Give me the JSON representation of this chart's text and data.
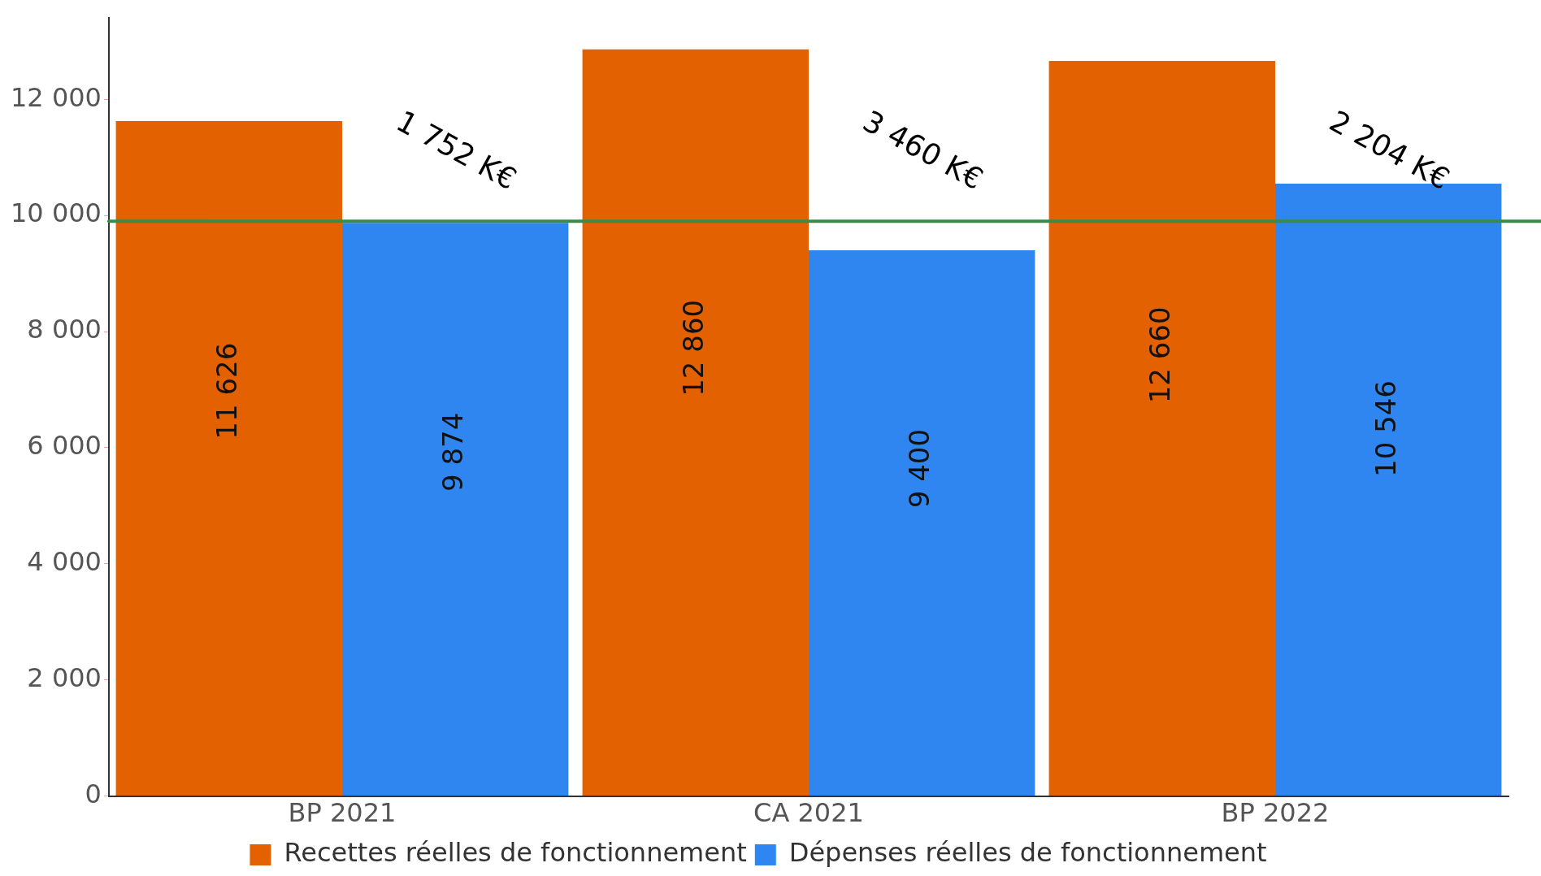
{
  "chart_data": {
    "type": "bar",
    "categories": [
      "BP 2021",
      "CA 2021",
      "BP 2022"
    ],
    "series": [
      {
        "name": "Recettes réelles de fonctionnement",
        "color": "#e36100",
        "values": [
          11626,
          12860,
          12660
        ]
      },
      {
        "name": "Dépenses réelles de fonctionnement",
        "color": "#2f86f0",
        "values": [
          9874,
          9400,
          10546
        ]
      }
    ],
    "ylim": [
      0,
      13400
    ],
    "yticks": [
      0,
      2000,
      4000,
      6000,
      8000,
      10000,
      12000
    ],
    "data_labels": true,
    "grid": false,
    "legend": "bottom",
    "ref_lines": [
      {
        "axis": "y",
        "value": 9900,
        "color": "#3a8a4a"
      }
    ],
    "annotations": [
      "1 752 K€",
      "3 460 K€",
      "2 204 K€"
    ]
  }
}
